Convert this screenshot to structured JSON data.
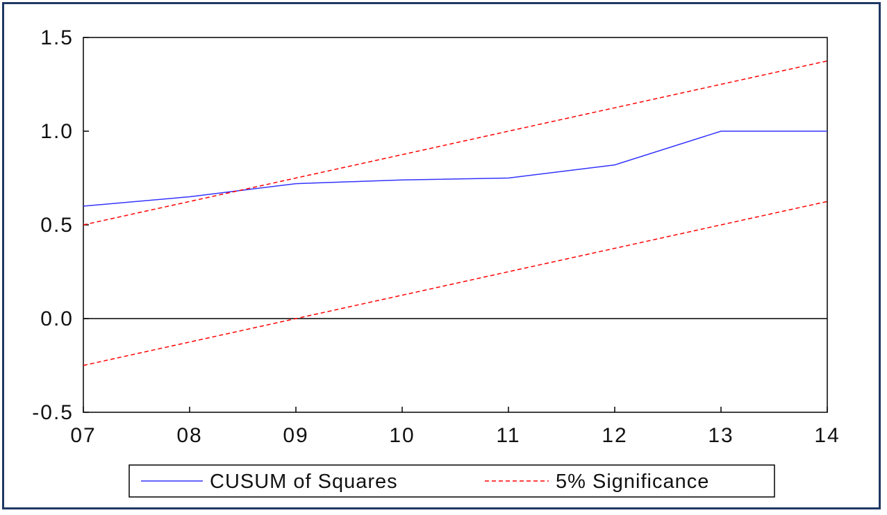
{
  "chart_data": {
    "type": "line",
    "x": [
      "07",
      "08",
      "09",
      "10",
      "11",
      "12",
      "13",
      "14"
    ],
    "ylim": [
      -0.5,
      1.5
    ],
    "y_ticks": [
      "1.5",
      "1.0",
      "0.5",
      "0.0",
      "-0.5"
    ],
    "y_tick_values": [
      1.5,
      1.0,
      0.5,
      0.0,
      -0.5
    ],
    "zero_line": true,
    "grid": false,
    "legend_position": "bottom",
    "series": [
      {
        "name": "CUSUM of Squares",
        "color": "#3333ff",
        "style": "solid",
        "values": [
          0.6,
          0.65,
          0.72,
          0.74,
          0.75,
          0.82,
          1.0,
          1.0
        ]
      },
      {
        "name": "5% Significance",
        "color": "#ff0000",
        "style": "dashed",
        "values": [
          0.5,
          0.625,
          0.75,
          0.875,
          1.0,
          1.125,
          1.25,
          1.375
        ]
      },
      {
        "name": "5% Significance",
        "color": "#ff0000",
        "style": "dashed",
        "legend": false,
        "values": [
          -0.25,
          -0.125,
          0.0,
          0.125,
          0.25,
          0.375,
          0.5,
          0.625
        ]
      }
    ]
  }
}
